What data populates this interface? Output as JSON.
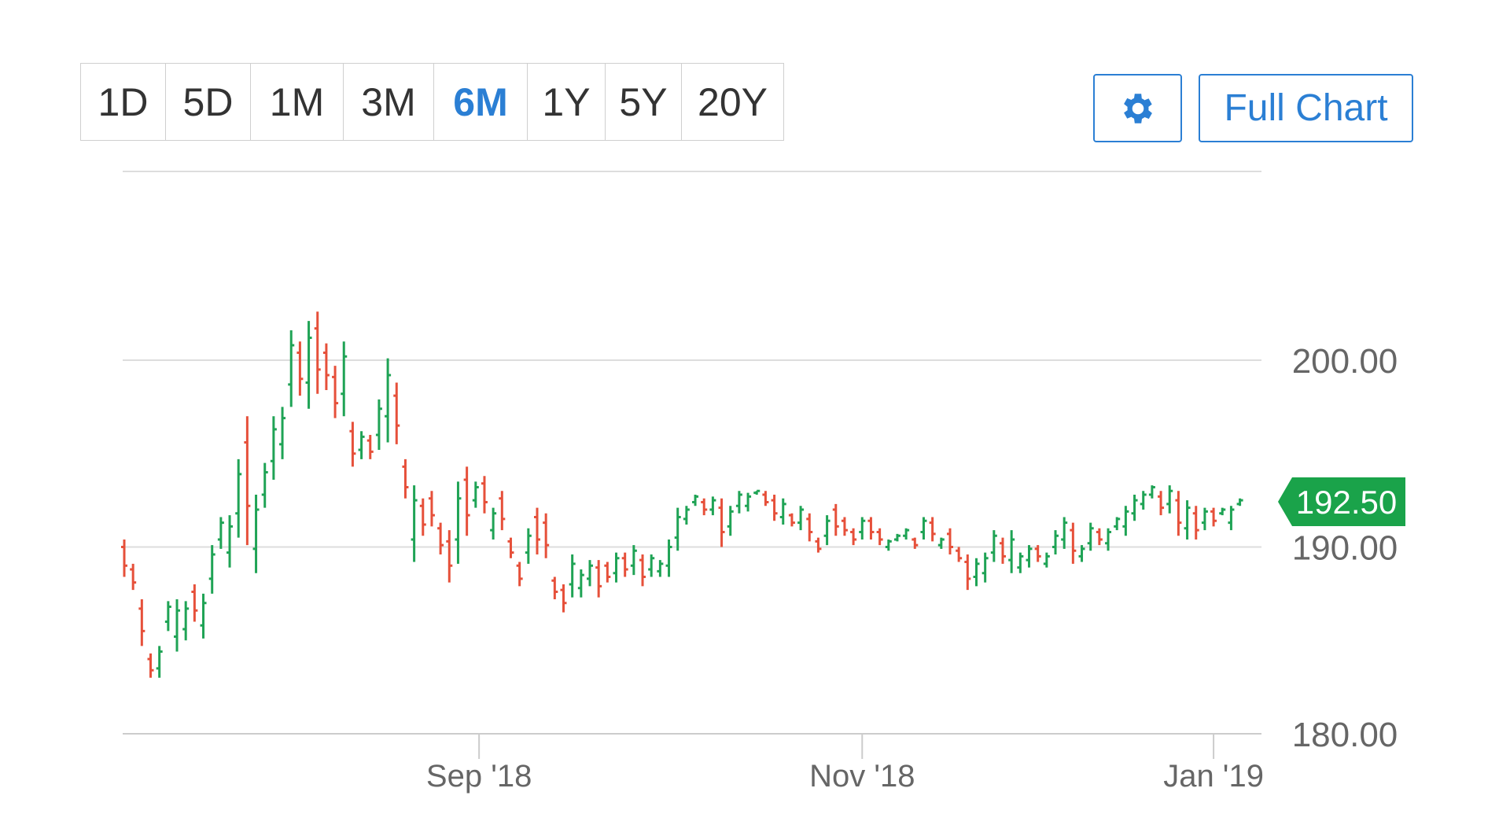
{
  "range_selector": {
    "options": [
      "1D",
      "5D",
      "1M",
      "3M",
      "6M",
      "1Y",
      "5Y",
      "20Y"
    ],
    "selected": "6M"
  },
  "toolbar": {
    "settings_icon": "gear-icon",
    "full_chart_label": "Full Chart"
  },
  "colors": {
    "up": "#1fa355",
    "down": "#e6503a",
    "accent": "#2b7fd4",
    "price_tag": "#1aa34a",
    "grid": "#dddddd"
  },
  "chart_data": {
    "type": "ohlc",
    "title": "",
    "ylim": [
      180,
      210
    ],
    "y_ticks": [
      "180.00",
      "190.00",
      "200.00"
    ],
    "y_tick_values": [
      180,
      190,
      200
    ],
    "x_ticks": [
      {
        "label": "Sep '18",
        "date": "2018-09-04"
      },
      {
        "label": "Nov '18",
        "date": "2018-11-01"
      },
      {
        "label": "Jan '19",
        "date": "2019-01-02"
      }
    ],
    "grid": true,
    "last_price": "192.50",
    "bars_format": [
      "date",
      "open",
      "high",
      "low",
      "close"
    ],
    "bars": [
      [
        "2018-07-05",
        190.0,
        190.4,
        188.4,
        189.0
      ],
      [
        "2018-07-06",
        188.8,
        189.1,
        187.7,
        188.1
      ],
      [
        "2018-07-09",
        186.7,
        187.2,
        184.7,
        185.5
      ],
      [
        "2018-07-10",
        184.0,
        184.3,
        183.0,
        183.4
      ],
      [
        "2018-07-11",
        183.5,
        184.7,
        183.0,
        184.4
      ],
      [
        "2018-07-12",
        186.0,
        187.1,
        185.5,
        186.8
      ],
      [
        "2018-07-13",
        185.2,
        187.2,
        184.4,
        186.6
      ],
      [
        "2018-07-16",
        185.6,
        187.1,
        185.0,
        186.7
      ],
      [
        "2018-07-17",
        187.6,
        188.0,
        186.0,
        186.6
      ],
      [
        "2018-07-18",
        185.8,
        187.5,
        185.1,
        187.0
      ],
      [
        "2018-07-19",
        188.3,
        190.1,
        187.5,
        189.6
      ],
      [
        "2018-07-20",
        190.4,
        191.6,
        189.9,
        191.3
      ],
      [
        "2018-07-23",
        189.7,
        191.7,
        188.9,
        191.1
      ],
      [
        "2018-07-24",
        191.8,
        194.7,
        190.5,
        193.9
      ],
      [
        "2018-07-25",
        195.6,
        197.0,
        190.1,
        192.2
      ],
      [
        "2018-07-26",
        189.9,
        192.8,
        188.6,
        192.0
      ],
      [
        "2018-07-27",
        192.8,
        194.5,
        192.1,
        194.0
      ],
      [
        "2018-07-30",
        194.6,
        197.0,
        193.6,
        196.3
      ],
      [
        "2018-07-31",
        195.5,
        197.5,
        194.7,
        196.9
      ],
      [
        "2018-08-01",
        198.7,
        201.6,
        197.5,
        200.8
      ],
      [
        "2018-08-02",
        200.4,
        201.0,
        198.1,
        199.0
      ],
      [
        "2018-08-03",
        198.8,
        202.1,
        197.4,
        201.2
      ],
      [
        "2018-08-06",
        201.7,
        202.6,
        198.2,
        199.5
      ],
      [
        "2018-08-07",
        200.4,
        200.9,
        198.4,
        199.2
      ],
      [
        "2018-08-08",
        199.1,
        199.7,
        196.9,
        197.7
      ],
      [
        "2018-08-09",
        198.2,
        201.0,
        197.0,
        200.2
      ],
      [
        "2018-08-10",
        196.2,
        196.7,
        194.3,
        195.0
      ],
      [
        "2018-08-13",
        195.2,
        196.2,
        194.7,
        195.9
      ],
      [
        "2018-08-14",
        195.7,
        196.0,
        194.7,
        195.1
      ],
      [
        "2018-08-15",
        196.0,
        197.9,
        195.2,
        197.4
      ],
      [
        "2018-08-16",
        197.0,
        200.1,
        195.6,
        199.2
      ],
      [
        "2018-08-17",
        198.1,
        198.8,
        195.5,
        196.5
      ],
      [
        "2018-08-20",
        194.3,
        194.7,
        192.6,
        193.2
      ],
      [
        "2018-08-21",
        190.4,
        193.3,
        189.2,
        192.5
      ],
      [
        "2018-08-22",
        192.2,
        192.6,
        190.6,
        191.2
      ],
      [
        "2018-08-23",
        192.6,
        193.0,
        191.1,
        191.7
      ],
      [
        "2018-08-24",
        191.0,
        191.3,
        189.6,
        190.1
      ],
      [
        "2018-08-27",
        190.3,
        190.9,
        188.1,
        189.0
      ],
      [
        "2018-08-28",
        190.4,
        193.5,
        189.1,
        192.6
      ],
      [
        "2018-08-29",
        193.6,
        194.3,
        190.6,
        191.7
      ],
      [
        "2018-08-30",
        192.5,
        193.5,
        192.1,
        193.2
      ],
      [
        "2018-08-31",
        193.4,
        193.8,
        191.8,
        192.4
      ],
      [
        "2018-09-04",
        190.9,
        192.1,
        190.4,
        191.8
      ],
      [
        "2018-09-05",
        192.6,
        193.0,
        190.9,
        191.5
      ],
      [
        "2018-09-06",
        190.3,
        190.5,
        189.4,
        189.7
      ],
      [
        "2018-09-07",
        189.0,
        189.2,
        187.9,
        188.3
      ],
      [
        "2018-09-10",
        189.7,
        191.0,
        189.1,
        190.6
      ],
      [
        "2018-09-11",
        191.6,
        192.1,
        189.6,
        190.4
      ],
      [
        "2018-09-12",
        191.3,
        191.8,
        189.4,
        190.1
      ],
      [
        "2018-09-13",
        188.2,
        188.4,
        187.2,
        187.6
      ],
      [
        "2018-09-14",
        187.7,
        188.0,
        186.5,
        187.0
      ],
      [
        "2018-09-17",
        188.0,
        189.6,
        187.3,
        189.1
      ],
      [
        "2018-09-18",
        187.8,
        188.8,
        187.3,
        188.5
      ],
      [
        "2018-09-19",
        188.3,
        189.3,
        187.9,
        189.0
      ],
      [
        "2018-09-20",
        188.9,
        189.3,
        187.3,
        187.9
      ],
      [
        "2018-09-21",
        189.0,
        189.2,
        188.1,
        188.4
      ],
      [
        "2018-09-24",
        188.6,
        189.7,
        188.1,
        189.4
      ],
      [
        "2018-09-25",
        189.4,
        189.7,
        188.4,
        188.8
      ],
      [
        "2018-09-26",
        189.0,
        190.1,
        188.5,
        189.8
      ],
      [
        "2018-09-27",
        189.3,
        189.6,
        187.9,
        188.4
      ],
      [
        "2018-09-28",
        188.8,
        189.6,
        188.4,
        189.4
      ],
      [
        "2018-10-01",
        188.7,
        189.3,
        188.4,
        189.1
      ],
      [
        "2018-10-02",
        189.0,
        190.4,
        188.4,
        190.0
      ],
      [
        "2018-10-03",
        190.5,
        192.1,
        189.8,
        191.6
      ],
      [
        "2018-10-04",
        191.5,
        192.2,
        191.2,
        192.0
      ],
      [
        "2018-10-05",
        192.4,
        192.8,
        192.2,
        192.7
      ],
      [
        "2018-10-08",
        192.4,
        192.6,
        191.7,
        192.0
      ],
      [
        "2018-10-09",
        192.0,
        192.7,
        191.7,
        192.5
      ],
      [
        "2018-10-10",
        192.1,
        192.6,
        190.0,
        190.8
      ],
      [
        "2018-10-11",
        191.1,
        192.2,
        190.6,
        191.9
      ],
      [
        "2018-10-12",
        192.2,
        193.0,
        191.8,
        192.8
      ],
      [
        "2018-10-15",
        192.2,
        192.9,
        191.9,
        192.7
      ],
      [
        "2018-10-16",
        192.9,
        193.0,
        192.8,
        193.0
      ],
      [
        "2018-10-17",
        192.8,
        193.0,
        192.2,
        192.4
      ],
      [
        "2018-10-18",
        192.5,
        192.8,
        191.4,
        191.8
      ],
      [
        "2018-10-19",
        191.6,
        192.6,
        191.2,
        192.3
      ],
      [
        "2018-10-22",
        191.7,
        191.8,
        191.1,
        191.3
      ],
      [
        "2018-10-23",
        191.3,
        192.2,
        190.9,
        192.0
      ],
      [
        "2018-10-24",
        191.5,
        191.8,
        190.3,
        190.8
      ],
      [
        "2018-10-25",
        190.3,
        190.5,
        189.7,
        189.9
      ],
      [
        "2018-10-26",
        190.6,
        191.7,
        190.1,
        191.4
      ],
      [
        "2018-10-29",
        192.0,
        192.3,
        190.6,
        191.1
      ],
      [
        "2018-10-30",
        191.4,
        191.6,
        190.6,
        190.9
      ],
      [
        "2018-10-31",
        190.8,
        191.0,
        190.1,
        190.4
      ],
      [
        "2018-11-01",
        190.8,
        191.6,
        190.4,
        191.4
      ],
      [
        "2018-11-02",
        191.4,
        191.6,
        190.4,
        190.8
      ],
      [
        "2018-11-05",
        190.8,
        191.0,
        190.1,
        190.4
      ],
      [
        "2018-11-06",
        190.0,
        190.4,
        189.8,
        190.3
      ],
      [
        "2018-11-07",
        190.4,
        190.7,
        190.3,
        190.6
      ],
      [
        "2018-11-08",
        190.6,
        191.0,
        190.4,
        190.9
      ],
      [
        "2018-11-09",
        190.4,
        190.5,
        189.9,
        190.1
      ],
      [
        "2018-11-12",
        190.8,
        191.6,
        190.4,
        191.4
      ],
      [
        "2018-11-13",
        191.3,
        191.6,
        190.3,
        190.7
      ],
      [
        "2018-11-14",
        190.1,
        190.5,
        189.9,
        190.4
      ],
      [
        "2018-11-15",
        190.7,
        191.0,
        189.6,
        190.0
      ],
      [
        "2018-11-16",
        189.8,
        190.0,
        189.2,
        189.4
      ],
      [
        "2018-11-19",
        189.2,
        189.6,
        187.7,
        188.3
      ],
      [
        "2018-11-20",
        188.4,
        189.4,
        187.9,
        189.1
      ],
      [
        "2018-11-21",
        188.6,
        189.7,
        188.1,
        189.4
      ],
      [
        "2018-11-23",
        189.7,
        190.9,
        189.2,
        190.6
      ],
      [
        "2018-11-26",
        190.2,
        190.5,
        189.1,
        189.5
      ],
      [
        "2018-11-27",
        189.3,
        190.9,
        188.6,
        190.4
      ],
      [
        "2018-11-28",
        188.9,
        189.7,
        188.6,
        189.5
      ],
      [
        "2018-11-29",
        189.3,
        190.1,
        188.9,
        189.9
      ],
      [
        "2018-11-30",
        189.9,
        190.1,
        189.2,
        189.5
      ],
      [
        "2018-12-03",
        189.1,
        189.7,
        188.9,
        189.5
      ],
      [
        "2018-12-04",
        190.0,
        190.9,
        189.6,
        190.6
      ],
      [
        "2018-12-06",
        190.4,
        191.6,
        189.9,
        191.3
      ],
      [
        "2018-12-07",
        190.9,
        191.3,
        189.1,
        189.8
      ],
      [
        "2018-12-10",
        189.5,
        190.1,
        189.2,
        189.9
      ],
      [
        "2018-12-11",
        190.2,
        191.3,
        189.8,
        191.0
      ],
      [
        "2018-12-12",
        190.8,
        191.0,
        190.1,
        190.4
      ],
      [
        "2018-12-13",
        190.2,
        191.0,
        189.8,
        190.8
      ],
      [
        "2018-12-14",
        191.1,
        191.6,
        190.9,
        191.5
      ],
      [
        "2018-12-17",
        191.1,
        192.2,
        190.6,
        191.9
      ],
      [
        "2018-12-18",
        191.8,
        192.8,
        191.4,
        192.5
      ],
      [
        "2018-12-19",
        192.3,
        193.0,
        192.0,
        192.8
      ],
      [
        "2018-12-20",
        192.8,
        193.3,
        192.6,
        193.2
      ],
      [
        "2018-12-21",
        192.7,
        193.0,
        191.7,
        192.1
      ],
      [
        "2018-12-24",
        192.3,
        193.3,
        191.8,
        193.0
      ],
      [
        "2018-12-26",
        192.5,
        193.0,
        190.6,
        191.3
      ],
      [
        "2018-12-27",
        191.0,
        192.5,
        190.4,
        192.1
      ],
      [
        "2018-12-28",
        191.8,
        192.2,
        190.4,
        190.9
      ],
      [
        "2018-12-31",
        191.3,
        192.1,
        190.9,
        191.9
      ],
      [
        "2019-01-02",
        191.9,
        192.1,
        191.1,
        191.4
      ],
      [
        "2019-01-03",
        191.8,
        192.1,
        191.7,
        192.0
      ],
      [
        "2019-01-04",
        191.3,
        192.2,
        190.9,
        192.0
      ],
      [
        "2019-01-07",
        192.3,
        192.6,
        192.2,
        192.5
      ]
    ]
  }
}
